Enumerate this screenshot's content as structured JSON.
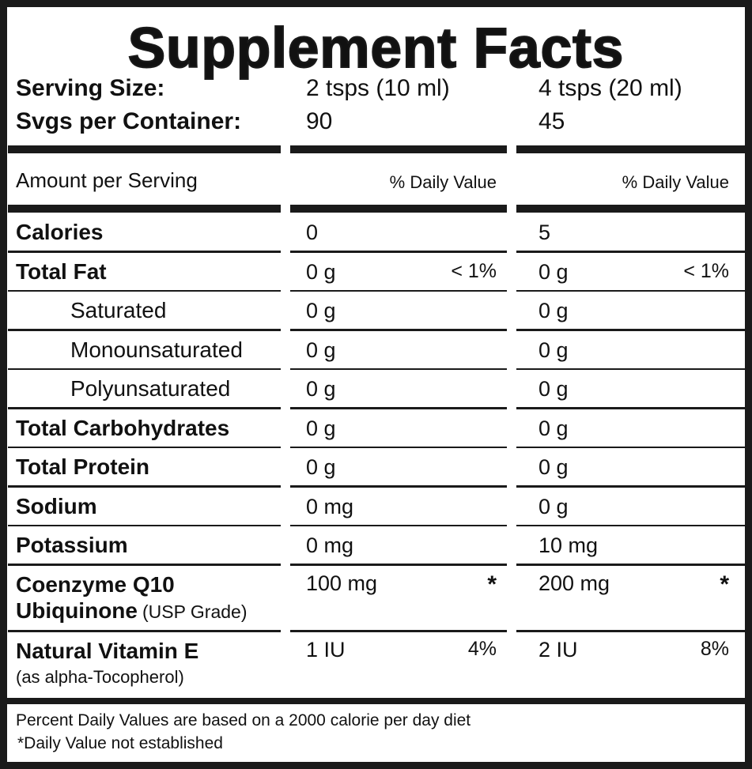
{
  "title": "Supplement Facts",
  "serving": {
    "rows": [
      [
        "Serving Size:",
        "2 tsps (10 ml)",
        "4 tsps (20 ml)"
      ],
      [
        "Svgs per Container:",
        "90",
        "45"
      ]
    ]
  },
  "header": {
    "label": "Amount per Serving",
    "daily_value_1": "% Daily Value",
    "daily_value_2": "% Daily Value"
  },
  "rows": [
    {
      "name": "Calories",
      "amount_1": "0",
      "amount_2": "5"
    },
    {
      "name": "Total Fat",
      "amount_1": "0 g",
      "dv_1": "< 1%",
      "amount_2": "0 g",
      "dv_2": "< 1%"
    },
    {
      "name": "Saturated",
      "indent": true,
      "amount_1": "0 g",
      "amount_2": "0 g"
    },
    {
      "name": "Monounsaturated",
      "indent": true,
      "amount_1": "0 g",
      "amount_2": "0 g"
    },
    {
      "name": "Polyunsaturated",
      "indent": true,
      "amount_1": "0 g",
      "amount_2": "0 g"
    },
    {
      "name": "Total Carbohydrates",
      "amount_1": "0 g",
      "amount_2": "0 g"
    },
    {
      "name": "Total Protein",
      "amount_1": "0 g",
      "amount_2": "0 g"
    },
    {
      "name": "Sodium",
      "amount_1": "0 mg",
      "amount_2": "0 g"
    },
    {
      "name": "Potassium",
      "amount_1": "0 mg",
      "amount_2": "10 mg"
    },
    {
      "name": "Coenzyme Q10",
      "form": "Ubiquinone",
      "note": "(USP Grade)",
      "amount_1": "100 mg",
      "dv_1": "*",
      "amount_2": "200 mg",
      "dv_2": "*"
    },
    {
      "name": "Natural Vitamin E",
      "note": "(as alpha-Tocopherol)",
      "amount_1": "1 IU",
      "dv_1": "4%",
      "amount_2": "2 IU",
      "dv_2": "8%"
    }
  ],
  "footer": {
    "lines": [
      "Percent Daily Values are based on a 2000 calorie per day diet",
      "*Daily Value not established"
    ]
  }
}
